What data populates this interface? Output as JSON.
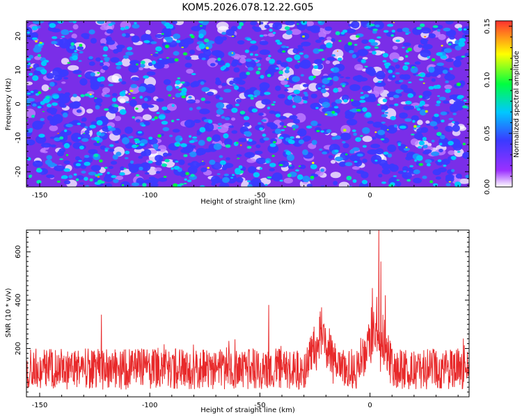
{
  "chart_data": [
    {
      "type": "heatmap",
      "title": "KOM5.2026.078.12.22.G05",
      "xlabel": "Height of straight line (km)",
      "ylabel": "Frequency (Hz)",
      "xlim": [
        -156,
        45
      ],
      "ylim": [
        -24.5,
        24.5
      ],
      "x_ticks": [
        "-150",
        "-100",
        "-50",
        "0"
      ],
      "y_ticks": [
        "20",
        "10",
        "0",
        "-10",
        "-20"
      ],
      "colorbar": {
        "label": "Normalized spectral amplitude",
        "range": [
          0.0,
          0.155
        ],
        "ticks": [
          "0.15",
          "0.10",
          "0.05",
          "0.00"
        ],
        "colormap": [
          "#ffffff",
          "#9b30ff",
          "#3a3aff",
          "#00c8ff",
          "#00ff40",
          "#ffff00",
          "#ff3030"
        ]
      },
      "notes": "Dense random speckle of spectral amplitude; values mostly 0.00-0.06 with scattered peaks up to ~0.12"
    },
    {
      "type": "line",
      "title": "",
      "xlabel": "Height of straight line (km)",
      "ylabel": "SNR (10 * v/v)",
      "xlim": [
        -156,
        45
      ],
      "ylim": [
        0,
        690
      ],
      "x_ticks": [
        "-150",
        "-100",
        "-50",
        "0"
      ],
      "y_ticks": [
        "600",
        "400",
        "200"
      ],
      "series": [
        {
          "name": "SNR",
          "color": "#e8292a",
          "baseline_range": [
            30,
            200
          ],
          "typical_peak": 250,
          "peaks": [
            {
              "x": -122,
              "y": 340
            },
            {
              "x": -46,
              "y": 380
            },
            {
              "x": -22,
              "y": 370
            },
            {
              "x": 1,
              "y": 450
            },
            {
              "x": 4,
              "y": 690
            },
            {
              "x": 5,
              "y": 560
            },
            {
              "x": 7,
              "y": 420
            }
          ],
          "bumps": [
            {
              "center": -22,
              "width": 5,
              "height": 150
            },
            {
              "center": 3,
              "width": 5,
              "height": 190
            }
          ]
        }
      ]
    }
  ]
}
